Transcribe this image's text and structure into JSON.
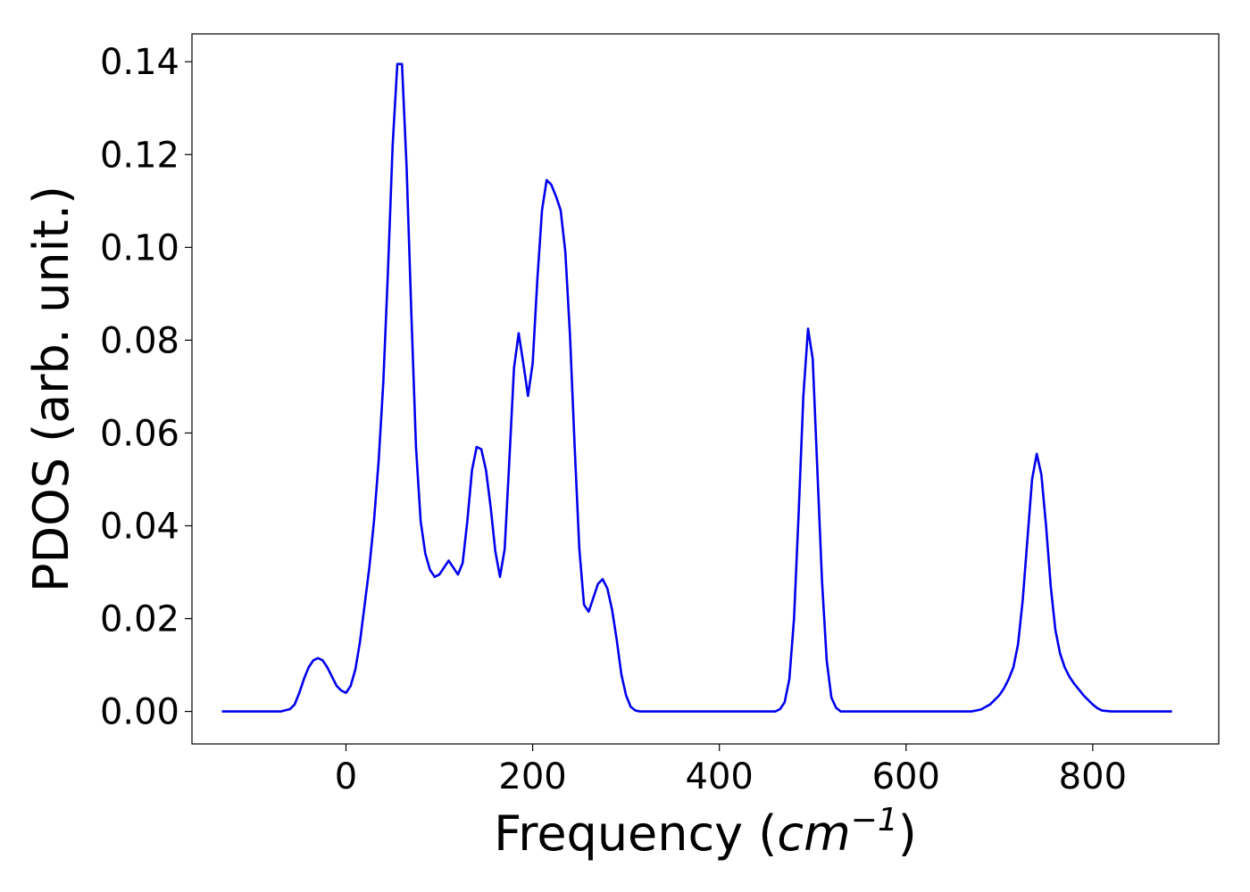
{
  "chart_data": {
    "type": "line",
    "xlabel": "Frequency (",
    "xlabel_unit": "cm",
    "xlabel_exponent": "−1",
    "xlabel_close": ")",
    "ylabel": "PDOS (arb. unit.)",
    "xlim": [
      -165,
      935
    ],
    "ylim": [
      -0.007,
      0.146
    ],
    "xticks": [
      0,
      200,
      400,
      600,
      800
    ],
    "xtick_labels": [
      "0",
      "200",
      "400",
      "600",
      "800"
    ],
    "yticks": [
      0.0,
      0.02,
      0.04,
      0.06,
      0.08,
      0.1,
      0.12,
      0.14
    ],
    "ytick_labels": [
      "0.00",
      "0.02",
      "0.04",
      "0.06",
      "0.08",
      "0.10",
      "0.12",
      "0.14"
    ],
    "grid": false,
    "series": [
      {
        "color": "#0000ee",
        "x": [
          -133,
          -70,
          -60,
          -55,
          -50,
          -45,
          -40,
          -35,
          -30,
          -25,
          -20,
          -15,
          -10,
          -5,
          0,
          5,
          10,
          15,
          20,
          25,
          30,
          35,
          40,
          45,
          50,
          55,
          60,
          65,
          70,
          75,
          80,
          85,
          90,
          95,
          100,
          105,
          110,
          115,
          120,
          125,
          130,
          135,
          140,
          145,
          150,
          155,
          160,
          165,
          170,
          175,
          180,
          185,
          190,
          195,
          200,
          205,
          210,
          215,
          220,
          225,
          230,
          235,
          240,
          245,
          250,
          255,
          260,
          265,
          270,
          275,
          280,
          285,
          290,
          295,
          300,
          305,
          310,
          315,
          320,
          460,
          465,
          470,
          475,
          480,
          485,
          490,
          495,
          500,
          505,
          510,
          515,
          520,
          525,
          530,
          540,
          670,
          680,
          690,
          700,
          705,
          710,
          715,
          720,
          725,
          730,
          735,
          740,
          745,
          750,
          755,
          760,
          765,
          770,
          775,
          780,
          790,
          800,
          805,
          810,
          820,
          885
        ],
        "y": [
          0.0,
          0.0,
          0.0005,
          0.0015,
          0.004,
          0.007,
          0.0095,
          0.011,
          0.0115,
          0.011,
          0.0095,
          0.0075,
          0.0055,
          0.0045,
          0.004,
          0.0055,
          0.009,
          0.015,
          0.023,
          0.031,
          0.041,
          0.054,
          0.071,
          0.095,
          0.122,
          0.1395,
          0.1395,
          0.117,
          0.086,
          0.057,
          0.041,
          0.034,
          0.0305,
          0.029,
          0.0295,
          0.031,
          0.0325,
          0.031,
          0.0295,
          0.032,
          0.041,
          0.052,
          0.057,
          0.0565,
          0.052,
          0.044,
          0.0345,
          0.029,
          0.035,
          0.054,
          0.074,
          0.0815,
          0.075,
          0.068,
          0.075,
          0.093,
          0.108,
          0.1145,
          0.1135,
          0.111,
          0.108,
          0.099,
          0.081,
          0.057,
          0.035,
          0.023,
          0.0215,
          0.0245,
          0.0275,
          0.0285,
          0.0265,
          0.022,
          0.0155,
          0.008,
          0.0035,
          0.001,
          0.0002,
          0.0,
          0.0,
          0.0,
          0.0005,
          0.002,
          0.007,
          0.02,
          0.043,
          0.068,
          0.0825,
          0.076,
          0.052,
          0.028,
          0.011,
          0.003,
          0.0008,
          0.0,
          0.0,
          0.0,
          0.0004,
          0.0015,
          0.0035,
          0.005,
          0.007,
          0.0095,
          0.0145,
          0.024,
          0.037,
          0.05,
          0.0555,
          0.051,
          0.04,
          0.027,
          0.0175,
          0.0125,
          0.0095,
          0.0075,
          0.006,
          0.0035,
          0.0015,
          0.0007,
          0.0002,
          0.0,
          0.0
        ]
      }
    ]
  }
}
